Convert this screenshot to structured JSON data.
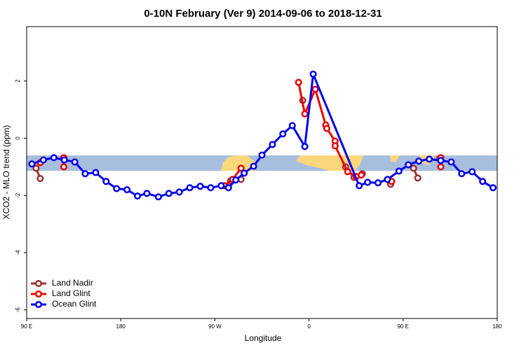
{
  "chart_data": {
    "type": "line",
    "title": "0-10N February (Ver 9)   2014-09-06 to 2018-12-31",
    "xlabel": "Longitude",
    "ylabel": "XCO2 - MLO trend (ppm)",
    "xlim": [
      90,
      540
    ],
    "ylim": [
      -6.3,
      3.9
    ],
    "xticks": [
      {
        "value": 90,
        "label": "90 E"
      },
      180,
      {
        "value": 270,
        "label": "90 W"
      },
      {
        "value": 360,
        "label": "0"
      },
      {
        "value": 450,
        "label": "90 E"
      },
      {
        "value": 540,
        "label": "180"
      }
    ],
    "yticks": [
      -6,
      -4,
      -2,
      0,
      2
    ],
    "legend": "bottomleft",
    "series": [
      {
        "name": "Land Nadir",
        "color": "#993333",
        "x": [
          99,
          103,
          null,
          125.5,
          null,
          285,
          295,
          null,
          354,
          null,
          395,
          403,
          411,
          null,
          438,
          null,
          460,
          464,
          null,
          485
        ],
        "values": [
          -1.05,
          -1.41,
          null,
          -0.71,
          null,
          -1.49,
          -1.44,
          null,
          1.32,
          null,
          -1.0,
          -1.37,
          -1.24,
          null,
          -1.61,
          null,
          -1.05,
          -1.39,
          null,
          -0.71
        ]
      },
      {
        "name": "Land Glint",
        "color": "#ee0000",
        "x": [
          103,
          null,
          125.5,
          125.5,
          null,
          279,
          287,
          295,
          null,
          350,
          356,
          366,
          376,
          377,
          385,
          385,
          397,
          405,
          410,
          null,
          439,
          null,
          486,
          486
        ],
        "values": [
          -0.85,
          null,
          -0.68,
          -1.0,
          null,
          -1.66,
          -1.44,
          -1.05,
          null,
          1.95,
          0.85,
          1.71,
          0.46,
          0.34,
          -0.1,
          -0.27,
          -1.17,
          -1.34,
          -1.29,
          null,
          -1.51,
          null,
          -0.68,
          -1.0
        ]
      },
      {
        "name": "Ocean Glint",
        "color": "#0000ee",
        "x": [
          95,
          106,
          116,
          126,
          136,
          146,
          156,
          166,
          176,
          186,
          196,
          205,
          216,
          226,
          236,
          246,
          256,
          266,
          276,
          283,
          290,
          298,
          307,
          315,
          325,
          335,
          344,
          356,
          364,
          408,
          416,
          426,
          435,
          446,
          455,
          465,
          475,
          486,
          496,
          506,
          516,
          526,
          536
        ],
        "values": [
          -0.9,
          -0.76,
          -0.68,
          -0.76,
          -0.83,
          -1.24,
          -1.2,
          -1.51,
          -1.76,
          -1.8,
          -2.02,
          -1.93,
          -2.05,
          -1.93,
          -1.88,
          -1.73,
          -1.68,
          -1.73,
          -1.66,
          -1.73,
          -1.46,
          -1.22,
          -0.98,
          -0.59,
          -0.22,
          0.15,
          0.44,
          -0.29,
          2.24,
          -1.66,
          -1.54,
          -1.56,
          -1.44,
          -1.15,
          -0.93,
          -0.8,
          -0.73,
          -0.78,
          -0.83,
          -1.24,
          -1.17,
          -1.51,
          -1.73
        ]
      }
    ]
  }
}
